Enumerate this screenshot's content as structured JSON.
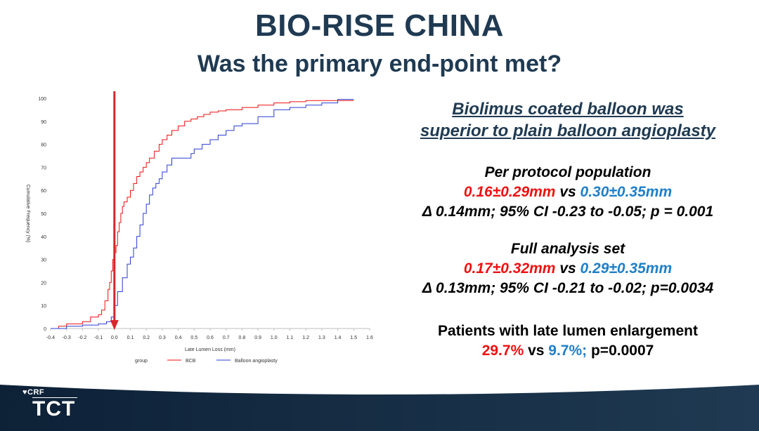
{
  "title": "BIO-RISE CHINA",
  "subtitle": "Was the primary end-point met?",
  "headline": [
    "Biolimus coated balloon was",
    "superior to plain balloon angioplasty"
  ],
  "per_protocol": {
    "title": "Per protocol population",
    "bcb": "0.16±0.29mm",
    "vs": " vs ",
    "balloon": "0.30±0.35mm",
    "stats": "Δ 0.14mm; 95% CI -0.23 to -0.05; p = 0.001"
  },
  "full_analysis": {
    "title": "Full analysis set",
    "bcb": "0.17±0.32mm",
    "vs": " vs ",
    "balloon": "0.29±0.35mm",
    "stats": "Δ 0.13mm; 95% CI -0.21 to -0.02; p=0.0034"
  },
  "lumen_enlargement": {
    "title": "Patients with late lumen enlargement",
    "bcb": "29.7%",
    "vs": " vs ",
    "balloon": "9.7%;",
    "p": " p=0.0007"
  },
  "footer": {
    "logo_crf": "CRF",
    "logo_tct": "TCT"
  },
  "colors": {
    "bcb": "#ee1111",
    "balloon": "#1f7fc8",
    "title": "#1f3a52",
    "arrow": "#d9262c"
  },
  "chart_data": {
    "type": "line",
    "step": true,
    "title": "",
    "xlabel": "Late Lumen Loss (mm)",
    "ylabel": "Cumulative Frequency (%)",
    "xlim": [
      -0.4,
      1.6
    ],
    "ylim": [
      0,
      100
    ],
    "xticks": [
      "-0.4",
      "-0.3",
      "-0.2",
      "-0.1",
      "0.0",
      "0.1",
      "0.2",
      "0.3",
      "0.4",
      "0.5",
      "0.6",
      "0.7",
      "0.8",
      "0.9",
      "1.0",
      "1.1",
      "1.2",
      "1.3",
      "1.4",
      "1.5",
      "1.6"
    ],
    "yticks": [
      "0",
      "10",
      "20",
      "30",
      "40",
      "50",
      "60",
      "70",
      "80",
      "90",
      "100"
    ],
    "legend_title": "group",
    "legend_position": "bottom",
    "arrow_x": 0.0,
    "series": [
      {
        "name": "BCB",
        "color": "#ee1111",
        "x": [
          -0.4,
          -0.35,
          -0.3,
          -0.2,
          -0.15,
          -0.1,
          -0.08,
          -0.06,
          -0.04,
          -0.03,
          -0.02,
          -0.01,
          0.0,
          0.01,
          0.02,
          0.03,
          0.04,
          0.05,
          0.06,
          0.08,
          0.1,
          0.12,
          0.14,
          0.16,
          0.18,
          0.2,
          0.22,
          0.25,
          0.28,
          0.3,
          0.33,
          0.36,
          0.4,
          0.44,
          0.48,
          0.52,
          0.56,
          0.6,
          0.65,
          0.7,
          0.8,
          0.9,
          1.0,
          1.1,
          1.2,
          1.3,
          1.4,
          1.5
        ],
        "y": [
          0,
          1,
          2,
          3,
          5,
          6,
          8,
          12,
          17,
          20,
          25,
          30,
          33,
          36,
          42,
          46,
          50,
          53,
          55,
          57,
          60,
          63,
          66,
          68,
          70,
          72,
          74,
          77,
          80,
          82,
          84,
          86,
          88,
          90,
          91,
          92,
          93,
          94,
          94.5,
          95,
          96,
          97,
          98,
          98.5,
          99,
          99,
          99,
          99
        ]
      },
      {
        "name": "Balloon angioplasty",
        "color": "#2a3cd6",
        "x": [
          -0.4,
          -0.3,
          -0.2,
          -0.1,
          -0.05,
          -0.02,
          0.0,
          0.02,
          0.05,
          0.08,
          0.1,
          0.12,
          0.14,
          0.16,
          0.18,
          0.2,
          0.22,
          0.24,
          0.26,
          0.28,
          0.3,
          0.33,
          0.36,
          0.4,
          0.45,
          0.48,
          0.5,
          0.55,
          0.6,
          0.65,
          0.7,
          0.75,
          0.8,
          0.9,
          1.0,
          1.1,
          1.2,
          1.3,
          1.4,
          1.5
        ],
        "y": [
          0,
          1,
          1.5,
          2,
          3,
          5,
          10,
          16,
          22,
          28,
          31,
          35,
          40,
          45,
          50,
          54,
          58,
          61,
          63,
          65,
          68,
          71,
          74,
          74,
          74,
          76,
          78,
          80,
          82,
          84,
          86,
          88,
          89,
          92,
          95,
          96,
          97,
          98,
          99.5,
          99.5
        ]
      }
    ]
  }
}
